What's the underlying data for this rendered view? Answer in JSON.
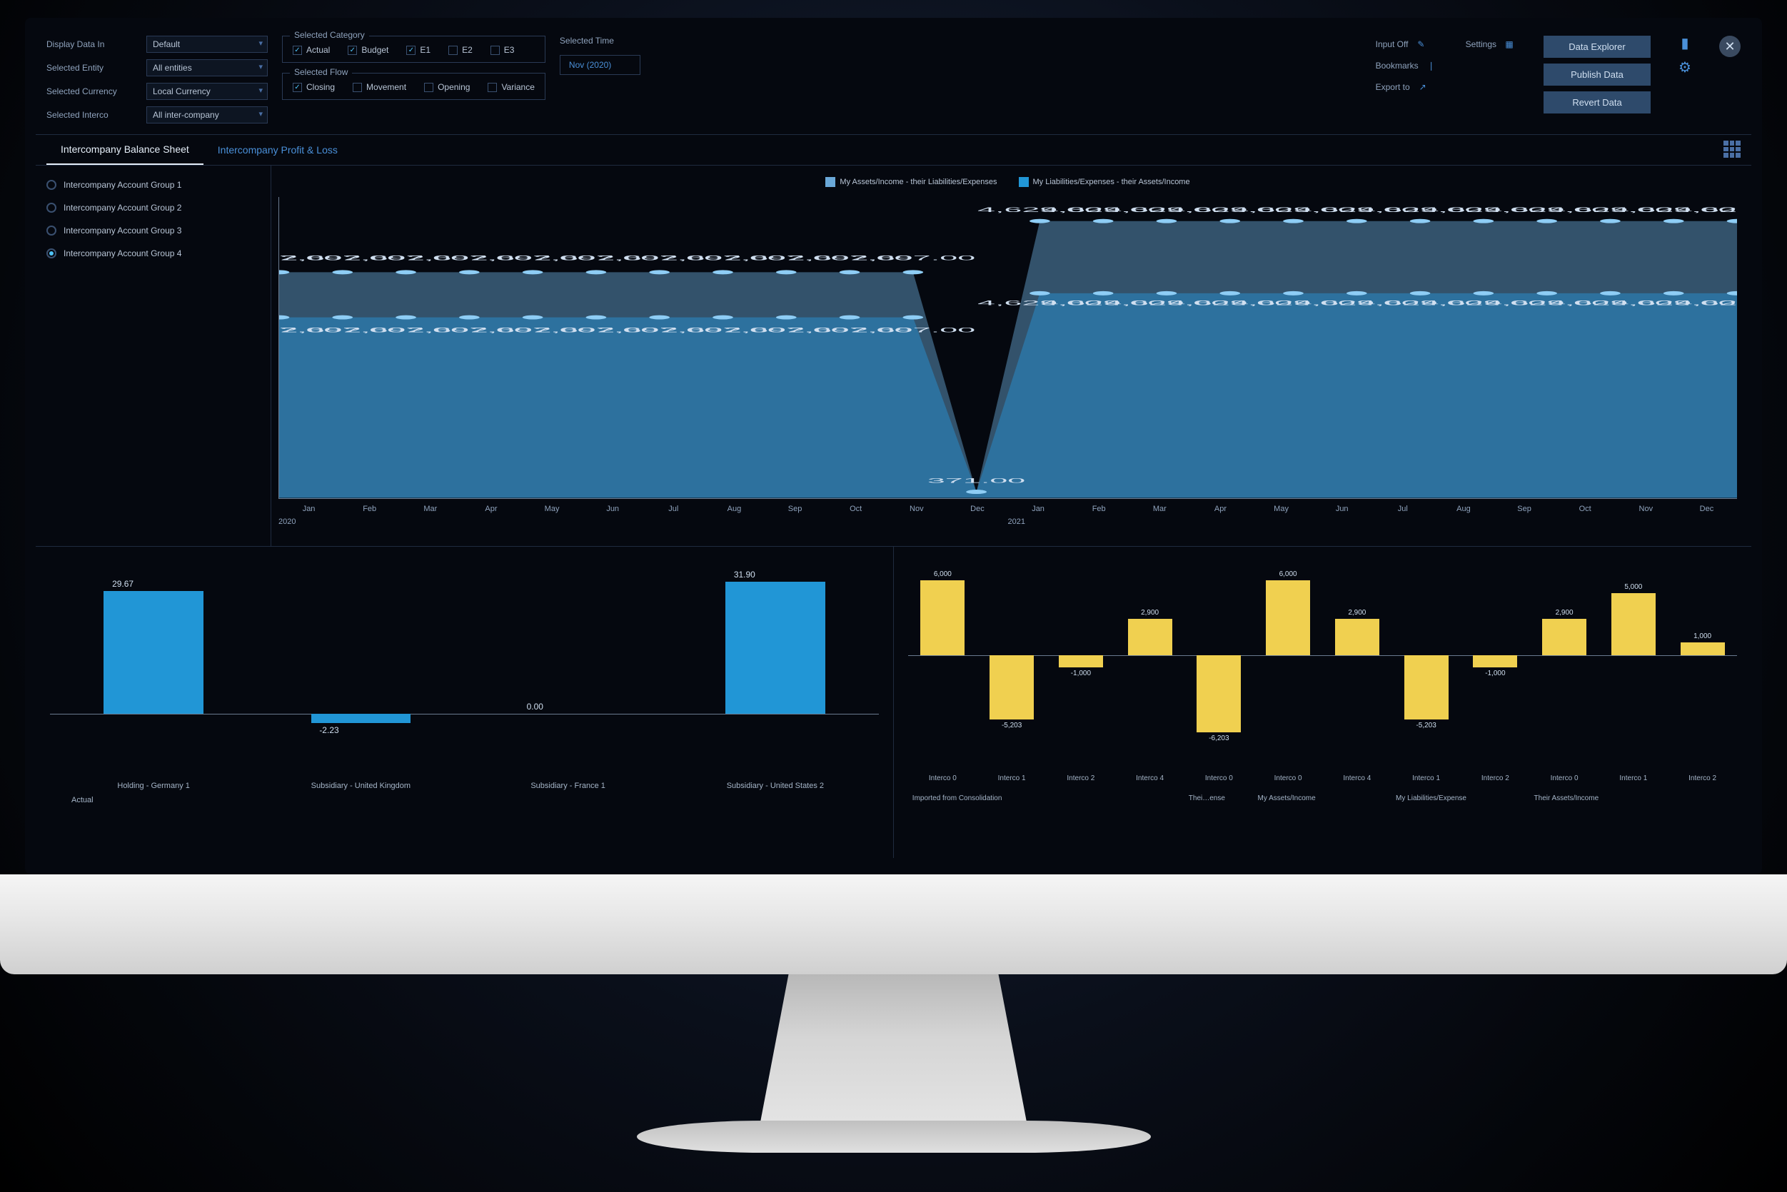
{
  "filters": {
    "displayDataIn": {
      "label": "Display Data In",
      "value": "Default"
    },
    "selectedEntity": {
      "label": "Selected Entity",
      "value": "All entities"
    },
    "selectedCurrency": {
      "label": "Selected Currency",
      "value": "Local Currency"
    },
    "selectedInterco": {
      "label": "Selected Interco",
      "value": "All inter-company"
    }
  },
  "category": {
    "legend": "Selected Category",
    "items": [
      {
        "label": "Actual",
        "checked": true
      },
      {
        "label": "Budget",
        "checked": true
      },
      {
        "label": "E1",
        "checked": true
      },
      {
        "label": "E2",
        "checked": false
      },
      {
        "label": "E3",
        "checked": false
      }
    ]
  },
  "flow": {
    "legend": "Selected Flow",
    "items": [
      {
        "label": "Closing",
        "checked": true
      },
      {
        "label": "Movement",
        "checked": false
      },
      {
        "label": "Opening",
        "checked": false
      },
      {
        "label": "Variance",
        "checked": false
      }
    ]
  },
  "time": {
    "legend": "Selected Time",
    "value": "Nov (2020)"
  },
  "tools": {
    "inputOff": "Input Off",
    "bookmarks": "Bookmarks",
    "exportTo": "Export to",
    "settings": "Settings"
  },
  "buttons": {
    "dataExplorer": "Data Explorer",
    "publish": "Publish Data",
    "revert": "Revert Data"
  },
  "tabs": {
    "active": "Intercompany Balance Sheet",
    "other": "Intercompany Profit & Loss"
  },
  "accountGroups": [
    {
      "label": "Intercompany Account Group 1",
      "selected": false
    },
    {
      "label": "Intercompany Account Group 2",
      "selected": false
    },
    {
      "label": "Intercompany Account Group 3",
      "selected": false
    },
    {
      "label": "Intercompany Account Group 4",
      "selected": true
    }
  ],
  "areaChart": {
    "legend": [
      {
        "label": "My Assets/Income - their Liabilities/Expenses",
        "color": "#6aa8d8"
      },
      {
        "label": "My Liabilities/Expenses - their Assets/Income",
        "color": "#2196d6"
      }
    ],
    "months": [
      "Jan",
      "Feb",
      "Mar",
      "Apr",
      "May",
      "Jun",
      "Jul",
      "Aug",
      "Sep",
      "Oct",
      "Nov",
      "Dec",
      "Jan",
      "Feb",
      "Mar",
      "Apr",
      "May",
      "Jun",
      "Jul",
      "Aug",
      "Sep",
      "Oct",
      "Nov",
      "Dec"
    ],
    "years": [
      "2020",
      "2021"
    ],
    "series1Value": "2,697.00",
    "series2Value": "2,697.00",
    "dipValue": "371.00",
    "postValue": "4,629.00",
    "colors": {
      "s1fill": "#5a8fb8",
      "s2fill": "#2b7fb3"
    }
  },
  "barChart": {
    "ylim": [
      -5,
      35
    ],
    "baseline": 0.6,
    "bars": [
      {
        "label": "Holding - Germany 1",
        "value": 29.67,
        "text": "29.67"
      },
      {
        "label": "Subsidiary - United Kingdom",
        "value": -2.23,
        "text": "-2.23"
      },
      {
        "label": "Subsidiary - France 1",
        "value": 0.0,
        "text": "0.00"
      },
      {
        "label": "Subsidiary - United States 2",
        "value": 31.9,
        "text": "31.90"
      }
    ],
    "subLabel": "Actual",
    "color": "#2196d6"
  },
  "yellowChart": {
    "color": "#f0d050",
    "ylim": [
      -7000,
      7000
    ],
    "groups": [
      {
        "label": "Imported from Consolidation",
        "bars": [
          {
            "cat": "Interco 0",
            "value": 6000,
            "text": "6,000"
          },
          {
            "cat": "Interco 1",
            "value": -5203,
            "text": "-5,203"
          },
          {
            "cat": "Interco 2",
            "value": -1000,
            "text": "-1,000"
          },
          {
            "cat": "Interco 4",
            "value": 2900,
            "text": "2,900"
          }
        ]
      },
      {
        "label": "Thei…ense",
        "bars": [
          {
            "cat": "Interco 0",
            "value": -6203,
            "text": "-6,203"
          }
        ]
      },
      {
        "label": "My Assets/Income",
        "bars": [
          {
            "cat": "Interco 0",
            "value": 6000,
            "text": "6,000"
          },
          {
            "cat": "Interco 4",
            "value": 2900,
            "text": "2,900"
          }
        ]
      },
      {
        "label": "My Liabilities/Expense",
        "bars": [
          {
            "cat": "Interco 1",
            "value": -5203,
            "text": "-5,203"
          },
          {
            "cat": "Interco 2",
            "value": -1000,
            "text": "-1,000"
          }
        ]
      },
      {
        "label": "Their Assets/Income",
        "bars": [
          {
            "cat": "Interco 0",
            "value": 2900,
            "text": "2,900"
          },
          {
            "cat": "Interco 1",
            "value": 5000,
            "text": "5,000"
          },
          {
            "cat": "Interco 2",
            "value": 1000,
            "text": "1,000"
          }
        ]
      }
    ]
  }
}
